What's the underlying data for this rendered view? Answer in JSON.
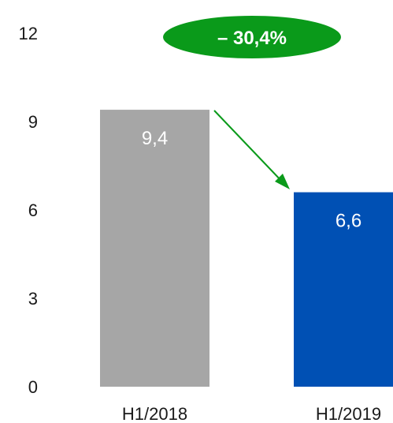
{
  "chart_data": {
    "type": "bar",
    "categories": [
      "H1/2018",
      "H1/2019"
    ],
    "values": [
      9.4,
      6.6
    ],
    "data_labels": [
      "9,4",
      "6,6"
    ],
    "bar_colors": [
      "#a6a6a6",
      "#0050b4"
    ],
    "ylim": [
      0,
      12
    ],
    "yticks": [
      0,
      3,
      6,
      9,
      12
    ],
    "ytick_labels": [
      "0",
      "3",
      "6",
      "9",
      "12"
    ],
    "grid": false,
    "title": "",
    "xlabel": "",
    "ylabel": "",
    "annotation": {
      "text": "– 30,4%",
      "badge_color": "#0a9a1a",
      "arrow_color": "#0a9a1a"
    }
  }
}
